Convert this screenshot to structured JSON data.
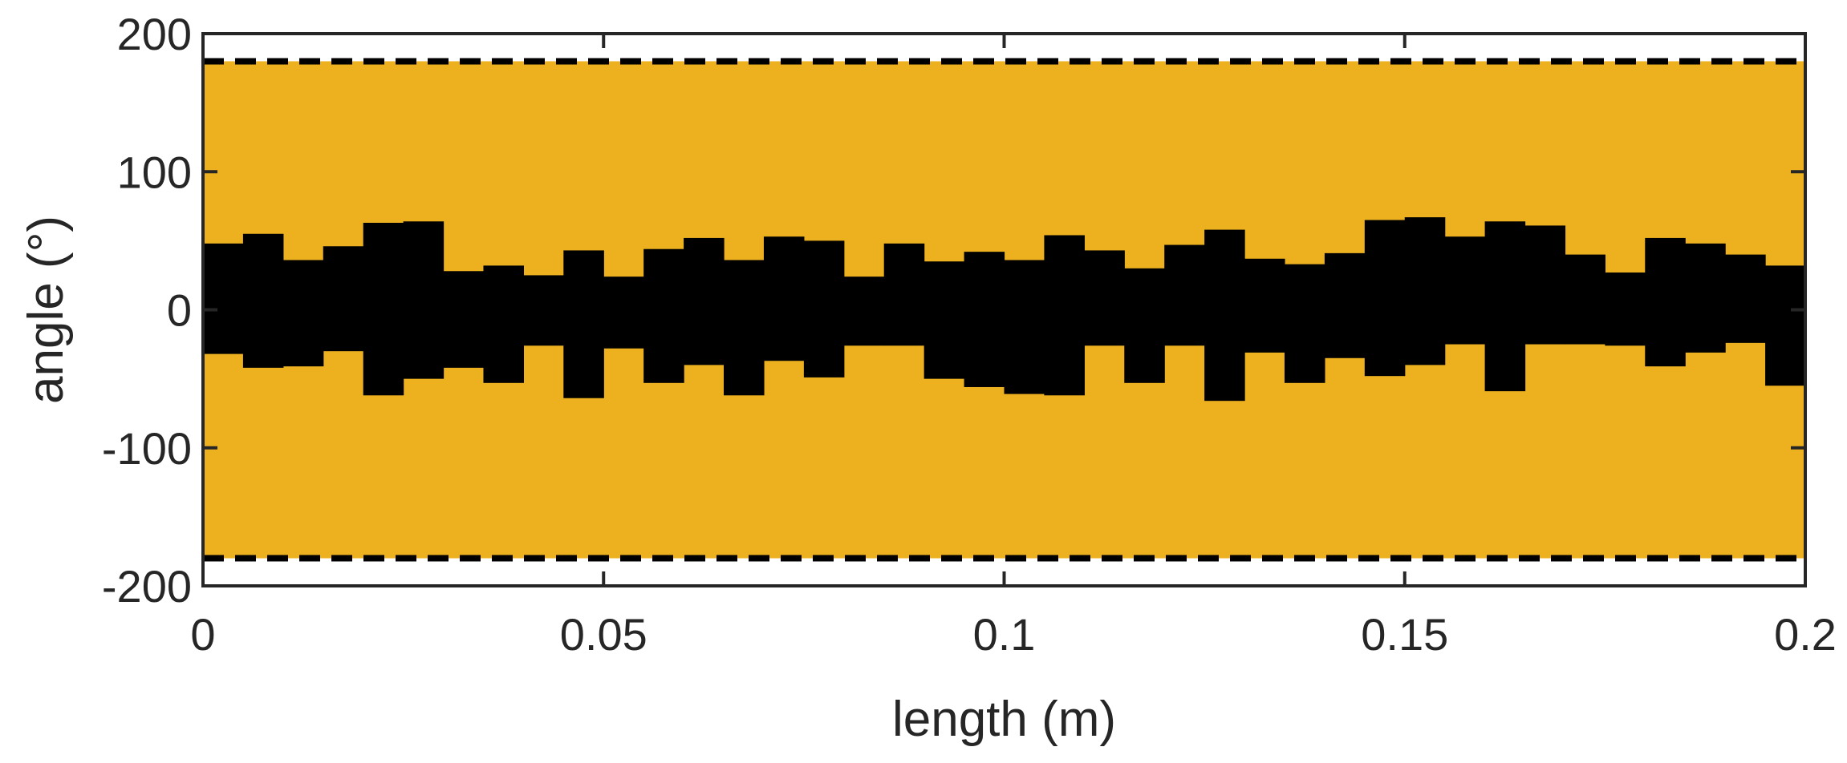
{
  "chart_data": {
    "type": "area",
    "xlabel": "length (m)",
    "ylabel": "angle (°)",
    "xlim": [
      0,
      0.2
    ],
    "ylim": [
      -200,
      200
    ],
    "xticks": [
      0,
      0.05,
      0.1,
      0.15,
      0.2
    ],
    "xtick_labels": [
      "0",
      "0.05",
      "0.1",
      "0.15",
      "0.2"
    ],
    "yticks": [
      -200,
      -100,
      0,
      100,
      200
    ],
    "ytick_labels": [
      "-200",
      "-100",
      "0",
      "100",
      "200"
    ],
    "grid": false,
    "legend": "none",
    "colors": {
      "fill": "#EDB120",
      "band": "#000000",
      "dashed": "#000000",
      "axis": "#262626"
    },
    "fill_range": [
      -180,
      180
    ],
    "dashed_lines": [
      180,
      -180
    ],
    "step_width": 0.005,
    "band_upper": [
      48,
      55,
      36,
      46,
      63,
      64,
      28,
      32,
      25,
      43,
      24,
      44,
      52,
      36,
      53,
      50,
      24,
      48,
      35,
      42,
      36,
      54,
      43,
      30,
      47,
      58,
      37,
      33,
      41,
      65,
      67,
      53,
      64,
      61,
      40,
      27,
      52,
      48,
      40,
      32
    ],
    "band_lower": [
      -32,
      -42,
      -41,
      -30,
      -62,
      -50,
      -42,
      -53,
      -26,
      -64,
      -28,
      -53,
      -40,
      -62,
      -37,
      -49,
      -26,
      -26,
      -50,
      -56,
      -61,
      -62,
      -26,
      -53,
      -26,
      -66,
      -31,
      -53,
      -35,
      -48,
      -40,
      -25,
      -59,
      -25,
      -25,
      -26,
      -41,
      -31,
      -24,
      -55
    ]
  }
}
